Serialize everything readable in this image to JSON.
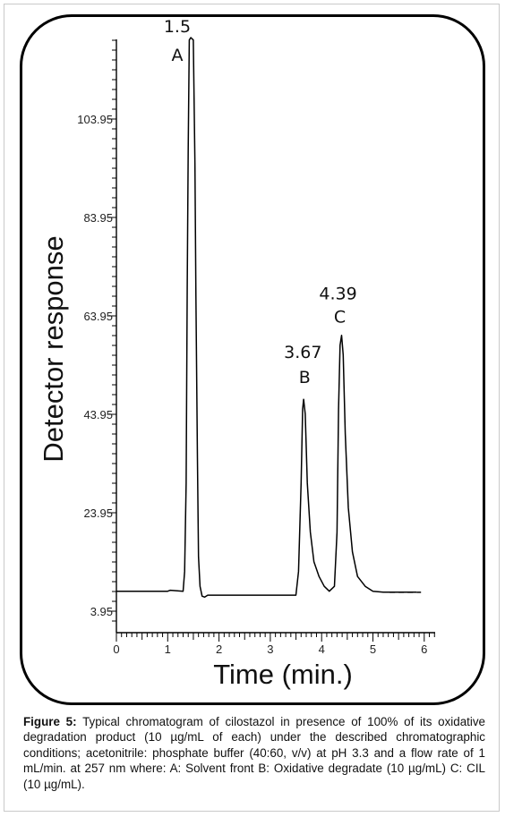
{
  "chart_data": {
    "type": "line",
    "title": "",
    "xlabel": "Time (min.)",
    "ylabel": "Detector response",
    "xlim": [
      0,
      6.2
    ],
    "ylim": [
      0,
      121
    ],
    "x_ticks": [
      "0",
      "1",
      "2",
      "3",
      "4",
      "5",
      "6"
    ],
    "y_ticks": [
      "3.95",
      "23.95",
      "43.95",
      "63.95",
      "83.95",
      "103.95"
    ],
    "grid": false,
    "series": [
      {
        "x": [
          0,
          1.0,
          1.05,
          1.3,
          1.33,
          1.36,
          1.38,
          1.4,
          1.42,
          1.45,
          1.5,
          1.53,
          1.55,
          1.58,
          1.6,
          1.63,
          1.67,
          1.72,
          1.78,
          1.85,
          2.0,
          3.5,
          3.55,
          3.6,
          3.63,
          3.65,
          3.68,
          3.72,
          3.78,
          3.85,
          3.95,
          4.05,
          4.15,
          4.25,
          4.3,
          4.33,
          4.36,
          4.39,
          4.42,
          4.46,
          4.52,
          4.6,
          4.7,
          4.85,
          5.0,
          5.2,
          5.4,
          5.6,
          5.85
        ],
        "y": [
          8.0,
          8.0,
          8.2,
          8.0,
          12.0,
          30.0,
          70.0,
          98.0,
          120.0,
          120.5,
          120.0,
          95.0,
          68.0,
          35.0,
          15.0,
          9.0,
          7.0,
          6.8,
          7.2,
          7.2,
          7.2,
          7.2,
          12.0,
          30.0,
          45.0,
          47.0,
          44.0,
          30.0,
          20.0,
          14.0,
          11.0,
          9.0,
          8.0,
          9.0,
          20.0,
          45.0,
          58.0,
          60.0,
          56.0,
          40.0,
          25.0,
          16.0,
          11.0,
          9.0,
          8.0,
          7.8,
          7.8,
          7.8,
          7.8
        ]
      }
    ],
    "annotations": [
      {
        "time": "1.5",
        "label": "A",
        "x": 1.5,
        "y": 120.5
      },
      {
        "time": "3.67",
        "label": "B",
        "x": 3.67,
        "y": 47.0
      },
      {
        "time": "4.39",
        "label": "C",
        "x": 4.39,
        "y": 60.0
      }
    ]
  },
  "caption": {
    "label": "Figure 5:",
    "text": "Typical chromatogram of cilostazol in presence of 100% of its oxidative degradation product (10 µg/mL of each) under the described chromatographic conditions; acetonitrile: phosphate buffer (40:60, v/v) at pH 3.3 and a flow rate of 1 mL/min. at 257 nm where: A: Solvent front B: Oxidative degradate (10 µg/mL) C: CIL (10 µg/mL)."
  }
}
